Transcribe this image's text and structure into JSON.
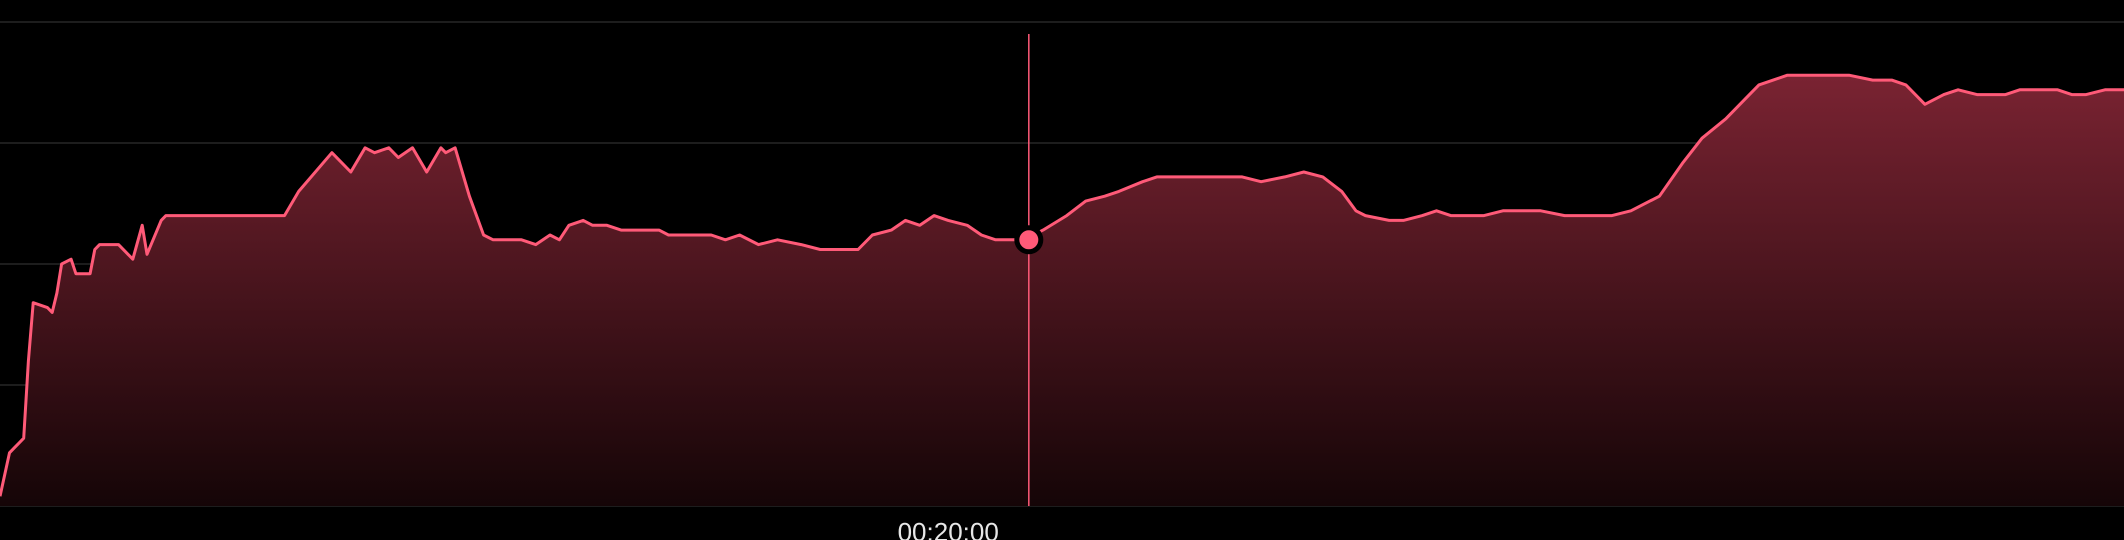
{
  "colors": {
    "background": "#000000",
    "line": "#ff5a78",
    "fill_top": "#7a2332",
    "fill_bottom": "#150507",
    "grid": "#3a3a3a",
    "cursor": "#ff5a78",
    "marker_fill": "#ff5a78",
    "marker_stroke": "#000000"
  },
  "chart_data": {
    "type": "area",
    "x_unit": "minutes",
    "x_ticks": [
      {
        "value": 20,
        "label": "00:20:00"
      }
    ],
    "xlim": [
      0,
      44.8
    ],
    "ylim": [
      0,
      100
    ],
    "grid": "horizontal",
    "legend": "none",
    "cursor": {
      "x": 21.7,
      "y": 55
    },
    "x": [
      0,
      0.2,
      0.3,
      0.4,
      0.5,
      0.6,
      0.7,
      1.0,
      1.1,
      1.2,
      1.3,
      1.5,
      1.6,
      1.9,
      2.0,
      2.1,
      2.5,
      2.8,
      3.0,
      3.1,
      3.4,
      3.5,
      3.8,
      4.1,
      4.3,
      4.7,
      5.2,
      5.4,
      6.0,
      6.3,
      7.0,
      7.4,
      7.7,
      7.9,
      8.2,
      8.4,
      8.7,
      9.0,
      9.3,
      9.4,
      9.6,
      9.9,
      10.2,
      10.4,
      11.0,
      11.3,
      11.6,
      11.8,
      12.0,
      12.3,
      12.5,
      12.8,
      13.1,
      13.9,
      14.1,
      15.0,
      15.3,
      15.6,
      16.0,
      16.4,
      16.9,
      17.3,
      17.8,
      18.1,
      18.4,
      18.8,
      19.1,
      19.4,
      19.7,
      20.0,
      20.4,
      20.7,
      21.0,
      21.6,
      22.0,
      22.5,
      22.9,
      23.3,
      23.6,
      24.1,
      24.4,
      24.7,
      25.0,
      25.3,
      25.7,
      26.2,
      26.6,
      27.1,
      27.5,
      27.9,
      28.3,
      28.6,
      28.8,
      29.3,
      29.6,
      30.0,
      30.3,
      30.6,
      31.0,
      31.3,
      31.7,
      32.1,
      32.5,
      33.0,
      33.5,
      34.0,
      34.4,
      35.0,
      35.5,
      35.9,
      36.4,
      36.8,
      37.1,
      37.4,
      37.7,
      38.0,
      38.6,
      39.0,
      39.5,
      39.9,
      40.2,
      40.6,
      41.0,
      41.3,
      41.7,
      42.0,
      42.3,
      42.6,
      43.0,
      43.4,
      43.7,
      44.0,
      44.4,
      44.8
    ],
    "y": [
      2,
      11,
      12,
      13,
      14,
      30,
      42,
      41,
      40,
      44,
      50,
      51,
      48,
      48,
      53,
      54,
      54,
      51,
      58,
      52,
      59,
      60,
      60,
      60,
      60,
      60,
      60,
      60,
      60,
      65,
      73,
      69,
      74,
      73,
      74,
      72,
      74,
      69,
      74,
      73,
      74,
      64,
      56,
      55,
      55,
      54,
      56,
      55,
      58,
      59,
      58,
      58,
      57,
      57,
      56,
      56,
      55,
      56,
      54,
      55,
      54,
      53,
      53,
      53,
      56,
      57,
      59,
      58,
      60,
      59,
      58,
      56,
      55,
      55,
      57,
      60,
      63,
      64,
      65,
      67,
      68,
      68,
      68,
      68,
      68,
      68,
      67,
      68,
      69,
      68,
      65,
      61,
      60,
      59,
      59,
      60,
      61,
      60,
      60,
      60,
      61,
      61,
      61,
      60,
      60,
      60,
      61,
      64,
      71,
      76,
      80,
      84,
      87,
      88,
      89,
      89,
      89,
      89,
      88,
      88,
      87,
      83,
      85,
      86,
      85,
      85,
      85,
      86,
      86,
      86,
      85,
      85,
      86,
      86
    ]
  }
}
